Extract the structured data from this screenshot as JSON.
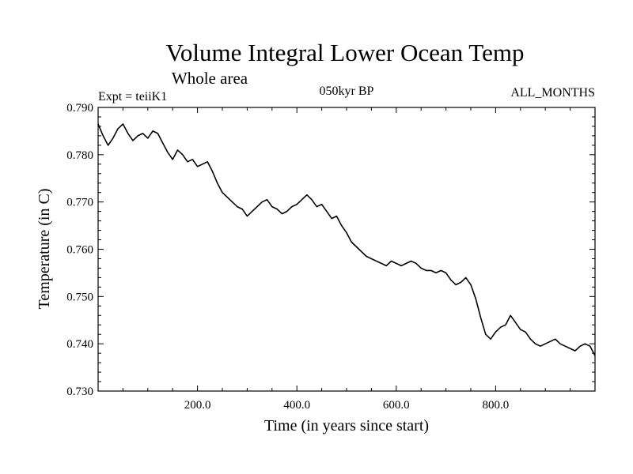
{
  "chart_data": {
    "type": "line",
    "title": "Volume Integral Lower Ocean Temp",
    "subtitle": "Whole area",
    "expt_label": "Expt = teiiK1",
    "period_label": "050kyr BP",
    "months_label": "ALL_MONTHS",
    "xlabel": "Time (in years since start)",
    "ylabel": "Temperature (in C)",
    "xlim": [
      0,
      1000
    ],
    "ylim": [
      0.73,
      0.79
    ],
    "x_ticks": [
      {
        "value": 200,
        "label": "200.0"
      },
      {
        "value": 400,
        "label": "400.0"
      },
      {
        "value": 600,
        "label": "600.0"
      },
      {
        "value": 800,
        "label": "800.0"
      }
    ],
    "y_ticks": [
      {
        "value": 0.73,
        "label": "0.730"
      },
      {
        "value": 0.74,
        "label": "0.740"
      },
      {
        "value": 0.75,
        "label": "0.750"
      },
      {
        "value": 0.76,
        "label": "0.760"
      },
      {
        "value": 0.77,
        "label": "0.770"
      },
      {
        "value": 0.78,
        "label": "0.780"
      },
      {
        "value": 0.79,
        "label": "0.790"
      }
    ],
    "grid": false,
    "line_color": "#000000",
    "series": [
      {
        "x": [
          0,
          10,
          20,
          30,
          40,
          50,
          60,
          70,
          80,
          90,
          100,
          110,
          120,
          130,
          140,
          150,
          160,
          170,
          180,
          190,
          200,
          210,
          220,
          230,
          240,
          250,
          260,
          270,
          280,
          290,
          300,
          310,
          320,
          330,
          340,
          350,
          360,
          370,
          380,
          390,
          400,
          410,
          420,
          430,
          440,
          450,
          460,
          470,
          480,
          490,
          500,
          510,
          520,
          530,
          540,
          550,
          560,
          570,
          580,
          590,
          600,
          610,
          620,
          630,
          640,
          650,
          660,
          670,
          680,
          690,
          700,
          710,
          720,
          730,
          740,
          750,
          760,
          770,
          780,
          790,
          800,
          810,
          820,
          830,
          840,
          850,
          860,
          870,
          880,
          890,
          900,
          910,
          920,
          930,
          940,
          950,
          960,
          970,
          980,
          990,
          1000
        ],
        "values": [
          0.7865,
          0.784,
          0.782,
          0.7835,
          0.7855,
          0.7865,
          0.7845,
          0.783,
          0.784,
          0.7845,
          0.7835,
          0.785,
          0.7845,
          0.7825,
          0.7805,
          0.779,
          0.781,
          0.78,
          0.7785,
          0.779,
          0.7775,
          0.778,
          0.7785,
          0.7765,
          0.774,
          0.772,
          0.771,
          0.77,
          0.769,
          0.7685,
          0.767,
          0.768,
          0.769,
          0.77,
          0.7705,
          0.769,
          0.7685,
          0.7675,
          0.768,
          0.769,
          0.7695,
          0.7705,
          0.7715,
          0.7705,
          0.769,
          0.7695,
          0.768,
          0.7665,
          0.767,
          0.765,
          0.7635,
          0.7615,
          0.7605,
          0.7595,
          0.7585,
          0.758,
          0.7575,
          0.757,
          0.7565,
          0.7575,
          0.757,
          0.7565,
          0.757,
          0.7575,
          0.757,
          0.756,
          0.7555,
          0.7555,
          0.755,
          0.7555,
          0.755,
          0.7535,
          0.7525,
          0.753,
          0.754,
          0.7525,
          0.7495,
          0.7455,
          0.742,
          0.741,
          0.7425,
          0.7435,
          0.744,
          0.746,
          0.7445,
          0.743,
          0.7425,
          0.741,
          0.74,
          0.7395,
          0.74,
          0.7405,
          0.741,
          0.74,
          0.7395,
          0.739,
          0.7385,
          0.7395,
          0.74,
          0.7395,
          0.7375
        ]
      }
    ]
  }
}
